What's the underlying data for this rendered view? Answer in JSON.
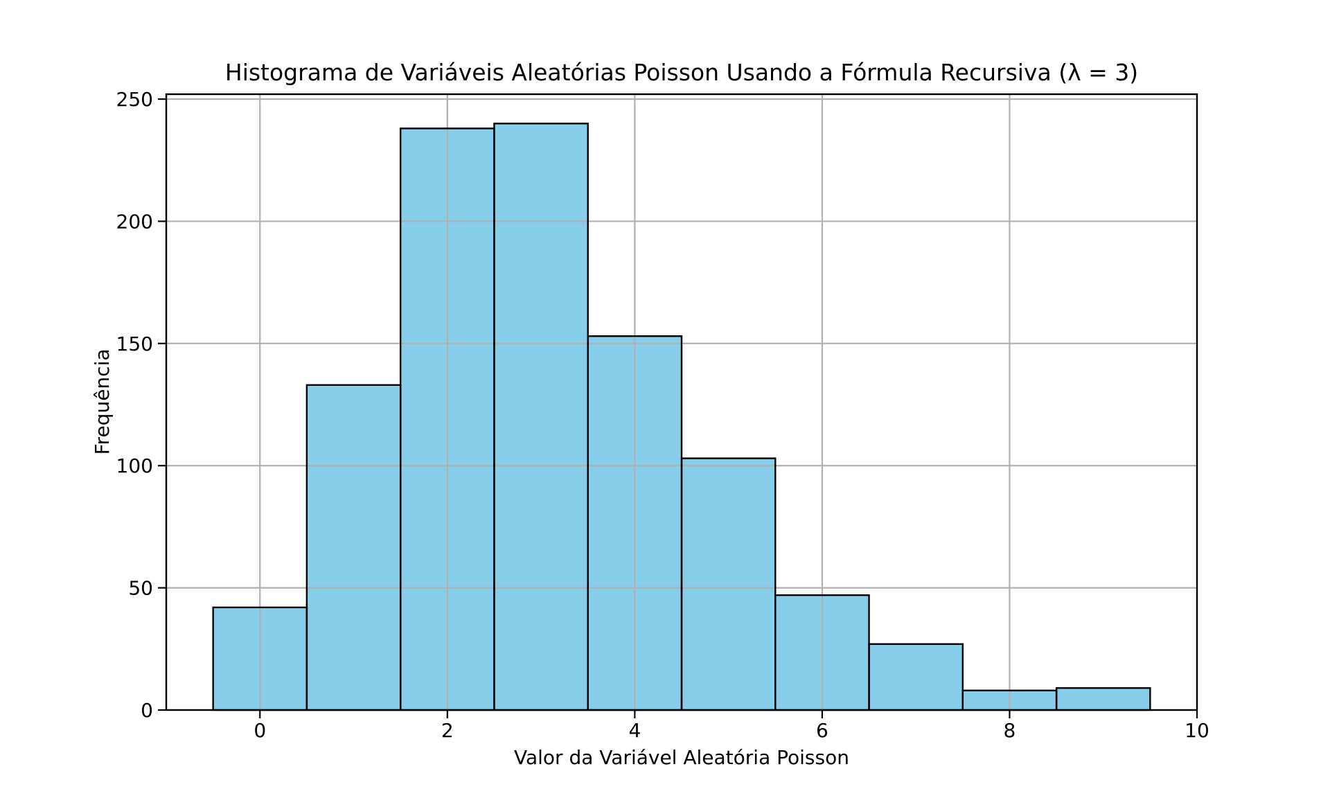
{
  "chart_data": {
    "type": "bar",
    "title": "Histograma de Variáveis Aleatórias Poisson Usando a Fórmula Recursiva (λ = 3)",
    "xlabel": "Valor da Variável Aleatória Poisson",
    "ylabel": "Frequência",
    "categories": [
      0,
      1,
      2,
      3,
      4,
      5,
      6,
      7,
      8,
      9
    ],
    "values": [
      42,
      133,
      238,
      240,
      153,
      103,
      47,
      27,
      8,
      9
    ],
    "bin_width": 1,
    "xlim": [
      -1,
      10
    ],
    "ylim": [
      0,
      252
    ],
    "xticks": [
      0,
      2,
      4,
      6,
      8,
      10
    ],
    "yticks": [
      0,
      50,
      100,
      150,
      200,
      250
    ],
    "grid": true,
    "legend": "none",
    "colors": {
      "bar_fill": "#87CEEB",
      "bar_edge": "#000000",
      "grid": "#b0b0b0",
      "spine": "#000000",
      "text": "#000000",
      "background": "#ffffff"
    }
  }
}
